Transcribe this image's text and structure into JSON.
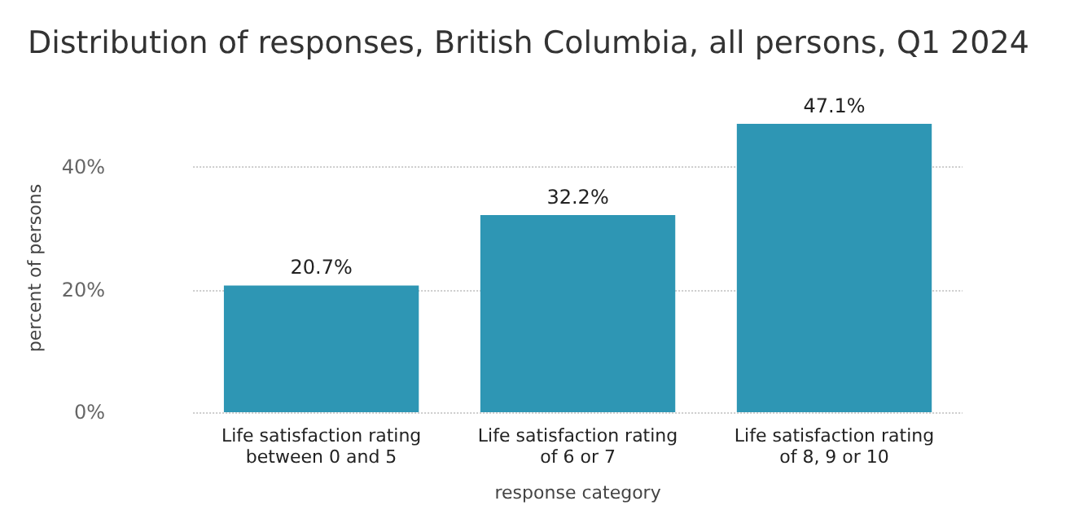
{
  "chart_data": {
    "type": "bar",
    "title": "Distribution of responses, British Columbia, all persons, Q1 2024",
    "categories": [
      "Life satisfaction rating\nbetween 0 and 5",
      "Life satisfaction rating\nof 6 or 7",
      "Life satisfaction rating\nof 8, 9 or 10"
    ],
    "values": [
      20.7,
      32.2,
      47.1
    ],
    "value_labels": [
      "20.7%",
      "32.2%",
      "47.1%"
    ],
    "color": "#2e96b4",
    "xlabel": "response category",
    "ylabel": "percent of persons",
    "yticks": [
      {
        "value": 0,
        "label": "0%"
      },
      {
        "value": 20,
        "label": "20%"
      },
      {
        "value": 40,
        "label": "40%"
      }
    ],
    "ylim": [
      0,
      47.1
    ],
    "grid": "y"
  }
}
